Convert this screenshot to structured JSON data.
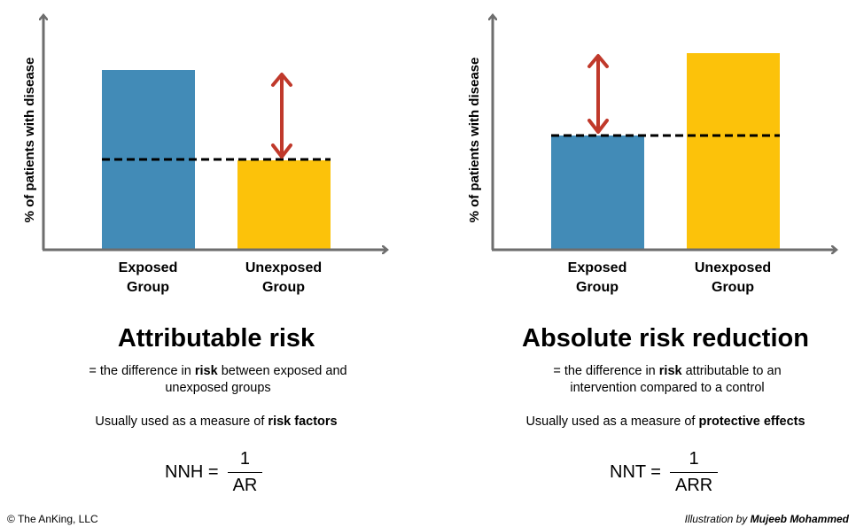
{
  "colors": {
    "exposed_bar": "#428bb7",
    "unexposed_bar": "#fcc20a",
    "arrow": "#c0392b",
    "axis": "#6e6e6e",
    "dashed_line": "#000000"
  },
  "left_panel": {
    "y_axis_label": "% of patients with disease",
    "bars": [
      {
        "label_line1": "Exposed",
        "label_line2": "Group"
      },
      {
        "label_line1": "Unexposed",
        "label_line2": "Group"
      }
    ],
    "title": "Attributable risk",
    "definition_prefix": "= the difference in ",
    "definition_bold": "risk",
    "definition_suffix": " between exposed and unexposed groups",
    "usage_prefix": "Usually used as a measure of ",
    "usage_bold": "risk factors",
    "formula_lhs": "NNH =",
    "formula_numerator": "1",
    "formula_denominator": "AR"
  },
  "right_panel": {
    "y_axis_label": "% of patients with disease",
    "bars": [
      {
        "label_line1": "Exposed",
        "label_line2": "Group"
      },
      {
        "label_line1": "Unexposed",
        "label_line2": "Group"
      }
    ],
    "title": "Absolute risk reduction",
    "definition_prefix": "= the difference in ",
    "definition_bold": "risk",
    "definition_suffix": " attributable to an intervention compared to a control",
    "usage_prefix": "Usually used as a measure of ",
    "usage_bold": "protective effects",
    "formula_lhs": "NNT =",
    "formula_numerator": "1",
    "formula_denominator": "ARR"
  },
  "footer": {
    "copyright": "© The AnKing, LLC",
    "credit_prefix": "Illustration by ",
    "credit_name": "Mujeeb Mohammed"
  }
}
